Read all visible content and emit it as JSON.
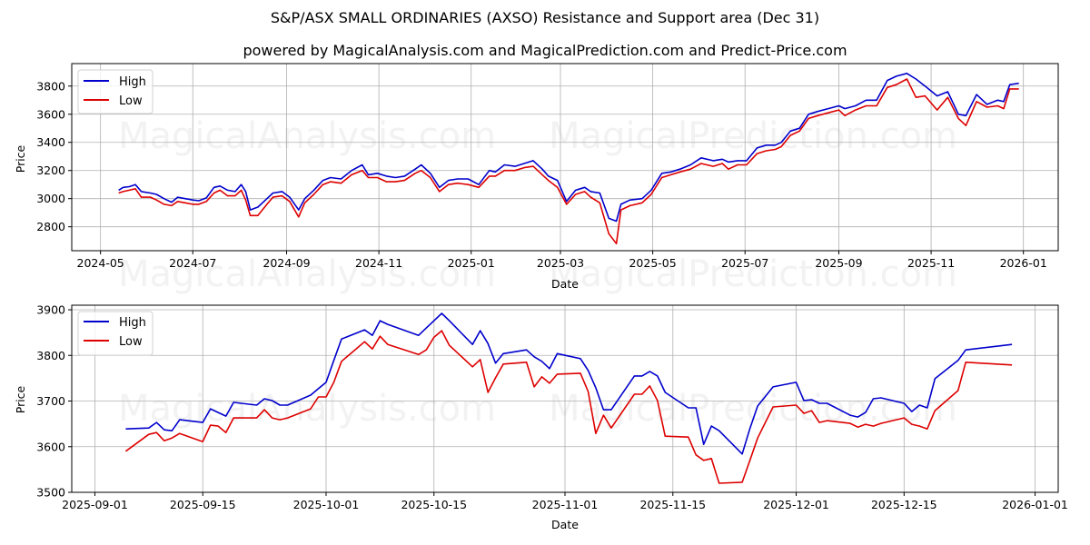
{
  "title": "S&P/ASX SMALL ORDINARIES (AXSO) Resistance and Support area (Dec 31)",
  "subtitle": "powered by MagicalAnalysis.com and MagicalPrediction.com and Predict-Price.com",
  "watermarks": [
    "MagicalAnalysis.com",
    "MagicalPrediction.com"
  ],
  "colors": {
    "high": "#0000cc",
    "low": "#dd0000",
    "grid": "#b0b0b0"
  },
  "chart_data": [
    {
      "type": "line",
      "title": "S&P/ASX SMALL ORDINARIES (AXSO) Resistance and Support area (Dec 31)",
      "xlabel": "Date",
      "ylabel": "Price",
      "ylim": [
        2630,
        3960
      ],
      "xlim": [
        "2024-04-12",
        "2026-01-24"
      ],
      "yticks": [
        2800,
        3000,
        3200,
        3400,
        3600,
        3800
      ],
      "xticks": [
        "2024-05",
        "2024-07",
        "2024-09",
        "2024-11",
        "2025-01",
        "2025-03",
        "2025-05",
        "2025-07",
        "2025-09",
        "2025-11",
        "2026-01"
      ],
      "xtick_dates": [
        "2024-05-01",
        "2024-07-01",
        "2024-09-01",
        "2024-11-01",
        "2025-01-01",
        "2025-03-01",
        "2025-05-01",
        "2025-07-01",
        "2025-09-01",
        "2025-11-01",
        "2026-01-01"
      ],
      "grid": true,
      "legend_position": "upper left",
      "x": [
        "2024-05-13",
        "2024-05-16",
        "2024-05-20",
        "2024-05-24",
        "2024-05-28",
        "2024-06-03",
        "2024-06-07",
        "2024-06-12",
        "2024-06-17",
        "2024-06-21",
        "2024-06-26",
        "2024-07-01",
        "2024-07-05",
        "2024-07-10",
        "2024-07-15",
        "2024-07-19",
        "2024-07-24",
        "2024-07-29",
        "2024-08-02",
        "2024-08-05",
        "2024-08-08",
        "2024-08-13",
        "2024-08-19",
        "2024-08-23",
        "2024-08-29",
        "2024-09-03",
        "2024-09-09",
        "2024-09-13",
        "2024-09-19",
        "2024-09-25",
        "2024-09-30",
        "2024-10-07",
        "2024-10-14",
        "2024-10-21",
        "2024-10-25",
        "2024-10-31",
        "2024-11-06",
        "2024-11-12",
        "2024-11-18",
        "2024-11-25",
        "2024-11-29",
        "2024-12-05",
        "2024-12-11",
        "2024-12-17",
        "2024-12-23",
        "2024-12-30",
        "2025-01-06",
        "2025-01-13",
        "2025-01-17",
        "2025-01-23",
        "2025-01-30",
        "2025-02-05",
        "2025-02-11",
        "2025-02-17",
        "2025-02-21",
        "2025-02-27",
        "2025-03-05",
        "2025-03-11",
        "2025-03-17",
        "2025-03-21",
        "2025-03-27",
        "2025-04-02",
        "2025-04-07",
        "2025-04-10",
        "2025-04-16",
        "2025-04-24",
        "2025-04-30",
        "2025-05-07",
        "2025-05-13",
        "2025-05-19",
        "2025-05-26",
        "2025-06-02",
        "2025-06-10",
        "2025-06-16",
        "2025-06-20",
        "2025-06-26",
        "2025-07-02",
        "2025-07-09",
        "2025-07-15",
        "2025-07-21",
        "2025-07-25",
        "2025-07-31",
        "2025-08-06",
        "2025-08-12",
        "2025-08-18",
        "2025-08-25",
        "2025-09-01",
        "2025-09-05",
        "2025-09-12",
        "2025-09-19",
        "2025-09-26",
        "2025-10-03",
        "2025-10-09",
        "2025-10-16",
        "2025-10-22",
        "2025-10-28",
        "2025-11-05",
        "2025-11-12",
        "2025-11-19",
        "2025-11-24",
        "2025-12-01",
        "2025-12-08",
        "2025-12-15",
        "2025-12-19",
        "2025-12-23",
        "2025-12-29"
      ],
      "series": [
        {
          "name": "High",
          "color": "#0000cc",
          "values": [
            3060,
            3080,
            3085,
            3100,
            3050,
            3040,
            3030,
            3000,
            2975,
            3010,
            3000,
            2990,
            2985,
            3005,
            3080,
            3090,
            3060,
            3050,
            3100,
            3050,
            2920,
            2940,
            3000,
            3040,
            3050,
            3010,
            2920,
            3000,
            3060,
            3130,
            3150,
            3140,
            3200,
            3240,
            3170,
            3180,
            3160,
            3150,
            3160,
            3210,
            3240,
            3180,
            3080,
            3130,
            3140,
            3140,
            3100,
            3200,
            3190,
            3240,
            3230,
            3250,
            3270,
            3210,
            3160,
            3130,
            2980,
            3060,
            3080,
            3050,
            3040,
            2860,
            2840,
            2960,
            2990,
            3000,
            3060,
            3180,
            3190,
            3210,
            3240,
            3290,
            3270,
            3280,
            3260,
            3270,
            3270,
            3360,
            3380,
            3380,
            3400,
            3480,
            3500,
            3600,
            3620,
            3640,
            3660,
            3640,
            3660,
            3700,
            3700,
            3840,
            3870,
            3890,
            3850,
            3800,
            3730,
            3760,
            3600,
            3590,
            3740,
            3670,
            3700,
            3690,
            3810,
            3820
          ]
        },
        {
          "name": "Low",
          "color": "#dd0000",
          "values": [
            3040,
            3050,
            3060,
            3070,
            3010,
            3010,
            2990,
            2960,
            2950,
            2980,
            2970,
            2960,
            2960,
            2980,
            3040,
            3060,
            3020,
            3020,
            3060,
            2990,
            2880,
            2880,
            2960,
            3010,
            3020,
            2980,
            2870,
            2970,
            3030,
            3100,
            3120,
            3110,
            3170,
            3200,
            3150,
            3150,
            3120,
            3120,
            3130,
            3180,
            3200,
            3150,
            3050,
            3100,
            3110,
            3100,
            3080,
            3160,
            3160,
            3200,
            3200,
            3220,
            3230,
            3170,
            3130,
            3080,
            2960,
            3030,
            3050,
            3010,
            2970,
            2750,
            2680,
            2920,
            2950,
            2970,
            3030,
            3150,
            3170,
            3190,
            3210,
            3250,
            3230,
            3250,
            3210,
            3240,
            3240,
            3320,
            3340,
            3350,
            3370,
            3450,
            3480,
            3570,
            3590,
            3610,
            3630,
            3590,
            3630,
            3660,
            3660,
            3790,
            3810,
            3850,
            3720,
            3730,
            3630,
            3720,
            3570,
            3520,
            3690,
            3650,
            3660,
            3640,
            3780,
            3780
          ]
        }
      ]
    },
    {
      "type": "line",
      "title": "",
      "xlabel": "Date",
      "ylabel": "Price",
      "ylim": [
        3500,
        3910
      ],
      "xlim": [
        "2025-08-29",
        "2026-01-04"
      ],
      "yticks": [
        3500,
        3600,
        3700,
        3800,
        3900
      ],
      "xticks": [
        "2025-09-01",
        "2025-09-15",
        "2025-10-01",
        "2025-10-15",
        "2025-11-01",
        "2025-11-15",
        "2025-12-01",
        "2025-12-15",
        "2026-01-01"
      ],
      "xtick_dates": [
        "2025-09-01",
        "2025-09-15",
        "2025-10-01",
        "2025-10-15",
        "2025-11-01",
        "2025-11-15",
        "2025-12-01",
        "2025-12-15",
        "2026-01-01"
      ],
      "grid": true,
      "legend_position": "upper left",
      "x": [
        "2025-09-05",
        "2025-09-08",
        "2025-09-09",
        "2025-09-10",
        "2025-09-11",
        "2025-09-12",
        "2025-09-15",
        "2025-09-16",
        "2025-09-17",
        "2025-09-18",
        "2025-09-19",
        "2025-09-22",
        "2025-09-23",
        "2025-09-24",
        "2025-09-25",
        "2025-09-26",
        "2025-09-29",
        "2025-09-30",
        "2025-10-01",
        "2025-10-02",
        "2025-10-03",
        "2025-10-06",
        "2025-10-07",
        "2025-10-08",
        "2025-10-09",
        "2025-10-13",
        "2025-10-14",
        "2025-10-15",
        "2025-10-16",
        "2025-10-17",
        "2025-10-20",
        "2025-10-21",
        "2025-10-22",
        "2025-10-23",
        "2025-10-24",
        "2025-10-27",
        "2025-10-28",
        "2025-10-29",
        "2025-10-30",
        "2025-10-31",
        "2025-11-03",
        "2025-11-04",
        "2025-11-05",
        "2025-11-06",
        "2025-11-07",
        "2025-11-10",
        "2025-11-11",
        "2025-11-12",
        "2025-11-13",
        "2025-11-14",
        "2025-11-17",
        "2025-11-18",
        "2025-11-19",
        "2025-11-20",
        "2025-11-21",
        "2025-11-24",
        "2025-11-25",
        "2025-11-26",
        "2025-11-28",
        "2025-12-01",
        "2025-12-02",
        "2025-12-03",
        "2025-12-04",
        "2025-12-05",
        "2025-12-08",
        "2025-12-09",
        "2025-12-10",
        "2025-12-11",
        "2025-12-12",
        "2025-12-15",
        "2025-12-16",
        "2025-12-17",
        "2025-12-18",
        "2025-12-19",
        "2025-12-22",
        "2025-12-23",
        "2025-12-29"
      ],
      "series": [
        {
          "name": "High",
          "color": "#0000cc",
          "values": [
            3639,
            3641,
            3653,
            3637,
            3635,
            3659,
            3653,
            3683,
            3675,
            3667,
            3697,
            3691,
            3705,
            3701,
            3691,
            3691,
            3713,
            3727,
            3741,
            3789,
            3836,
            3856,
            3844,
            3876,
            3868,
            3844,
            3860,
            3876,
            3892,
            3876,
            3824,
            3854,
            3826,
            3783,
            3804,
            3812,
            3797,
            3787,
            3771,
            3804,
            3793,
            3767,
            3729,
            3681,
            3681,
            3755,
            3755,
            3765,
            3755,
            3719,
            3685,
            3685,
            3605,
            3645,
            3635,
            3584,
            3640,
            3689,
            3731,
            3741,
            3701,
            3703,
            3695,
            3695,
            3669,
            3665,
            3675,
            3705,
            3707,
            3695,
            3677,
            3691,
            3685,
            3749,
            3789,
            3812,
            3824
          ]
        },
        {
          "name": "Low",
          "color": "#dd0000",
          "values": [
            3590,
            3627,
            3631,
            3613,
            3619,
            3629,
            3611,
            3647,
            3645,
            3631,
            3663,
            3663,
            3681,
            3663,
            3659,
            3663,
            3683,
            3709,
            3709,
            3741,
            3787,
            3830,
            3814,
            3842,
            3824,
            3802,
            3812,
            3840,
            3854,
            3822,
            3775,
            3791,
            3719,
            3751,
            3781,
            3785,
            3731,
            3753,
            3739,
            3759,
            3761,
            3721,
            3629,
            3669,
            3641,
            3715,
            3715,
            3733,
            3701,
            3623,
            3621,
            3582,
            3570,
            3574,
            3520,
            3522,
            3570,
            3619,
            3687,
            3691,
            3673,
            3679,
            3653,
            3657,
            3651,
            3643,
            3649,
            3645,
            3651,
            3663,
            3649,
            3645,
            3639,
            3679,
            3723,
            3785,
            3779
          ]
        }
      ]
    }
  ],
  "legend": {
    "items": [
      {
        "label": "High"
      },
      {
        "label": "Low"
      }
    ]
  }
}
